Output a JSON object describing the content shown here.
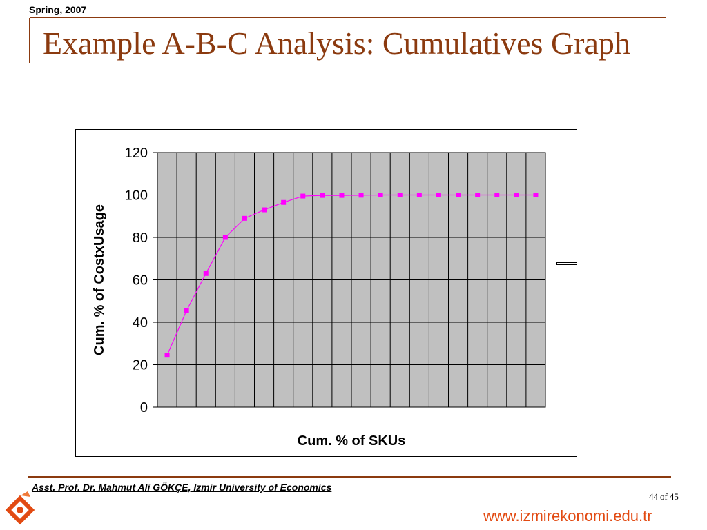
{
  "header": {
    "label": "Spring, 2007"
  },
  "slide": {
    "title": "Example A-B-C Analysis: Cumulatives Graph"
  },
  "footer": {
    "author": "Asst. Prof. Dr. Mahmut Ali GÖKÇE, Izmir University of Economics",
    "page_current": "44",
    "page_sep": "of",
    "page_total": "45",
    "website": "www.izmirekonomi.edu.tr"
  },
  "colors": {
    "title": "#8B3A0F",
    "rule": "#8B3A0F",
    "series": "#FF00FF",
    "plot_bg": "#C0C0C0",
    "website": "#E24A12"
  },
  "icons": {
    "logo": "izmir-university-logo-icon"
  },
  "chart_data": {
    "type": "line",
    "title": "",
    "xlabel": "Cum. % of SKUs",
    "ylabel": "Cum. % of CostxUsage",
    "ylim": [
      0,
      120
    ],
    "yticks": [
      0,
      20,
      40,
      60,
      80,
      100,
      120
    ],
    "grid": true,
    "legend": "none",
    "series": [
      {
        "marker": "square",
        "values": [
          24.5,
          45.5,
          63,
          80,
          89,
          93,
          96.5,
          99.5,
          99.8,
          99.8,
          99.9,
          100,
          100,
          100,
          100,
          100,
          100,
          100,
          100,
          100
        ]
      }
    ]
  }
}
